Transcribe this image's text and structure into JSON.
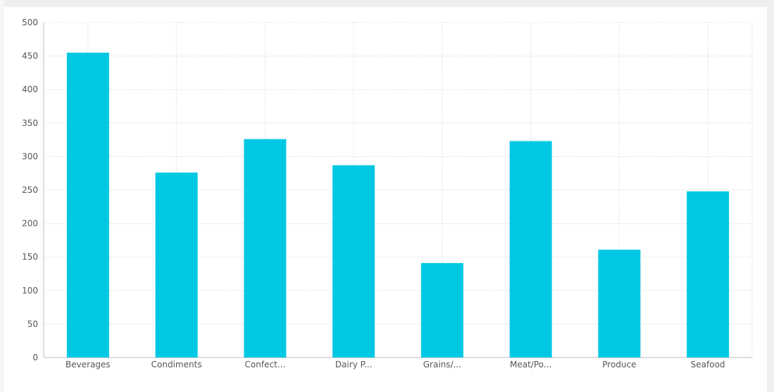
{
  "chart_data": {
    "type": "bar",
    "title": "",
    "xlabel": "",
    "ylabel": "",
    "categories": [
      "Beverages",
      "Condiments",
      "Confect...",
      "Dairy P...",
      "Grains/...",
      "Meat/Po...",
      "Produce",
      "Seafood"
    ],
    "values": [
      455,
      276,
      326,
      287,
      141,
      323,
      161,
      248
    ],
    "ylim": [
      0,
      500
    ],
    "yticks": [
      0,
      50,
      100,
      150,
      200,
      250,
      300,
      350,
      400,
      450,
      500
    ],
    "grid": true,
    "legend": "none",
    "colors": {
      "bar": "#00c8e3",
      "grid": "#cfcfcf",
      "axis": "#bdbdbd",
      "label": "#555555"
    }
  }
}
